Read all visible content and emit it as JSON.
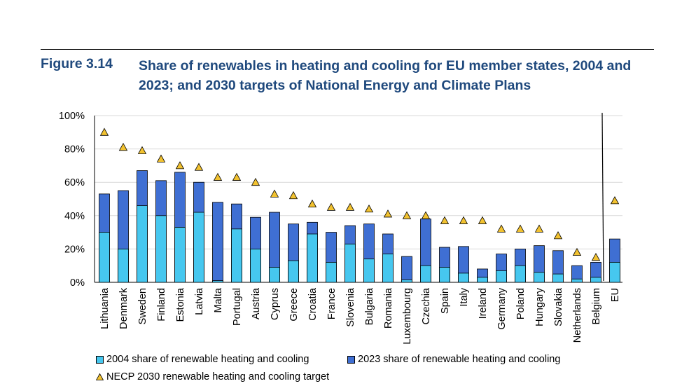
{
  "figure": {
    "label": "Figure 3.14",
    "title": "Share of renewables in heating and cooling for EU member states, 2004 and 2023; and 2030 targets of National Energy and Climate Plans"
  },
  "colors": {
    "series_2004": "#46c7ef",
    "series_2023": "#3f6fd3",
    "target_marker": "#f2c230",
    "title": "#1f497d"
  },
  "legend": {
    "s2004": "2004 share of renewable heating and cooling",
    "s2023": "2023 share of renewable heating and cooling",
    "target": "NECP 2030 renewable heating and cooling target"
  },
  "chart_data": {
    "type": "bar",
    "subtype": "overlapping bars with target markers",
    "categories": [
      "Lithuania",
      "Denmark",
      "Sweden",
      "Finland",
      "Estonia",
      "Latvia",
      "Malta",
      "Portugal",
      "Austria",
      "Cyprus",
      "Greece",
      "Croatia",
      "France",
      "Slovenia",
      "Bulgaria",
      "Romania",
      "Luxembourg",
      "Czechia",
      "Spain",
      "Italy",
      "Ireland",
      "Germany",
      "Poland",
      "Hungary",
      "Slovakia",
      "Netherlands",
      "Belgium",
      "EU"
    ],
    "series": [
      {
        "name": "2004 share of renewable heating and cooling",
        "values": [
          30,
          20,
          46,
          40,
          33,
          42,
          1,
          32,
          20,
          9,
          13,
          29,
          12,
          23,
          14,
          17,
          1.5,
          10,
          9,
          5.5,
          3,
          7,
          10,
          6,
          5,
          2,
          3,
          12
        ]
      },
      {
        "name": "2023 share of renewable heating and cooling",
        "values": [
          53,
          55,
          67,
          61,
          66,
          60,
          48,
          47,
          39,
          42,
          35,
          36,
          30,
          34,
          35,
          29,
          15.5,
          38,
          21,
          21.5,
          8,
          17,
          20,
          22,
          19,
          10,
          12,
          26
        ]
      },
      {
        "name": "NECP 2030 renewable heating and cooling target",
        "values": [
          90,
          81,
          79,
          74,
          70,
          69,
          63,
          63,
          60,
          53,
          52,
          47,
          45,
          45,
          44,
          41,
          40,
          40,
          37,
          37,
          37,
          32,
          32,
          32,
          28,
          18,
          15,
          49
        ]
      }
    ],
    "ylim": [
      0,
      100
    ],
    "yticks": [
      "0%",
      "20%",
      "40%",
      "60%",
      "80%",
      "100%"
    ],
    "grid": "horizontal",
    "legend_position": "bottom"
  }
}
